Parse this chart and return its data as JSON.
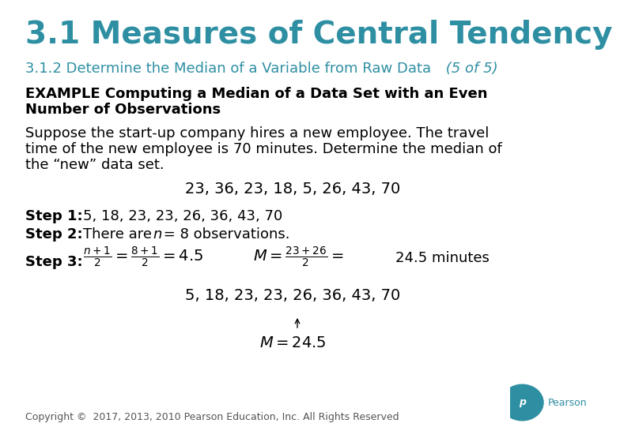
{
  "bg_color": "#ffffff",
  "title_text": "3.1 Measures of Central Tendency",
  "title_color": "#2E8FA3",
  "subtitle_text": "3.1.2 Determine the Median of a Variable from Raw Data",
  "subtitle_suffix": " (5 of 5)",
  "subtitle_color": "#2E8FA3",
  "example_line1": "EXAMPLE Computing a Median of a Data Set with an Even",
  "example_line2": "Number of Observations",
  "para_line1": "Suppose the start-up company hires a new employee. The travel",
  "para_line2": "time of the new employee is 70 minutes. Determine the median of",
  "para_line3": "the “new” data set.",
  "data_line": "23, 36, 23, 18, 5, 26, 43, 70",
  "step1_label": "Step 1:",
  "step1_data": "5, 18, 23, 23, 26, 36, 43, 70",
  "step2_label": "Step 2:",
  "step2_pre": "There are ",
  "step2_n": "n",
  "step2_post": " = 8 observations.",
  "step3_label": "Step 3:",
  "data_line2": "5, 18, 23, 23, 26, 36, 43, 70",
  "footer": "Copyright ©  2017, 2013, 2010 Pearson Education, Inc. All Rights Reserved",
  "pearson_color": "#2E8FA3",
  "text_color": "#000000",
  "title_fontsize": 28,
  "subtitle_fontsize": 13,
  "body_fontsize": 13,
  "step_fontsize": 13,
  "formula_fontsize": 13,
  "data_fontsize": 14,
  "footer_fontsize": 9
}
